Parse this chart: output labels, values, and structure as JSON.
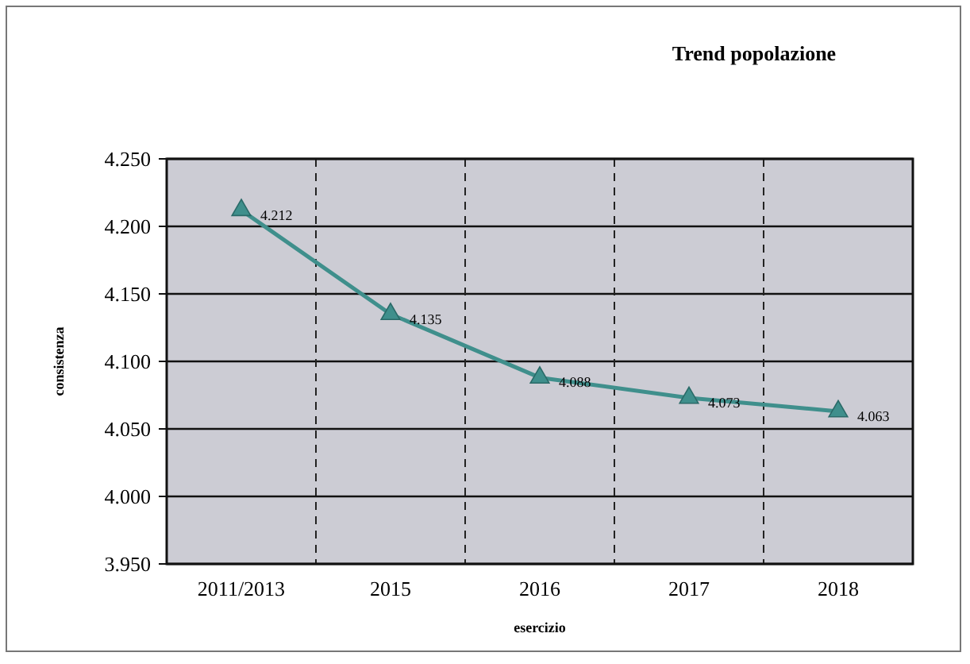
{
  "chart_data": {
    "type": "line",
    "title": "Trend popolazione",
    "xlabel": "esercizio",
    "ylabel": "consistenza",
    "categories": [
      "2011/2013",
      "2015",
      "2016",
      "2017",
      "2018"
    ],
    "series": [
      {
        "color": "#3f8f8c",
        "values": [
          4212,
          4135,
          4088,
          4073,
          4063
        ],
        "value_labels": [
          "4.212",
          "4.135",
          "4.088",
          "4.073",
          "4.063"
        ]
      }
    ],
    "ylim": [
      3950,
      4250
    ],
    "yticks": [
      {
        "value": 3950,
        "label": "3.950"
      },
      {
        "value": 4000,
        "label": "4.000"
      },
      {
        "value": 4050,
        "label": "4.050"
      },
      {
        "value": 4100,
        "label": "4.100"
      },
      {
        "value": 4150,
        "label": "4.150"
      },
      {
        "value": 4200,
        "label": "4.200"
      },
      {
        "value": 4250,
        "label": "4.250"
      }
    ],
    "grid": true,
    "marker": "triangle",
    "line_style": "solid"
  }
}
